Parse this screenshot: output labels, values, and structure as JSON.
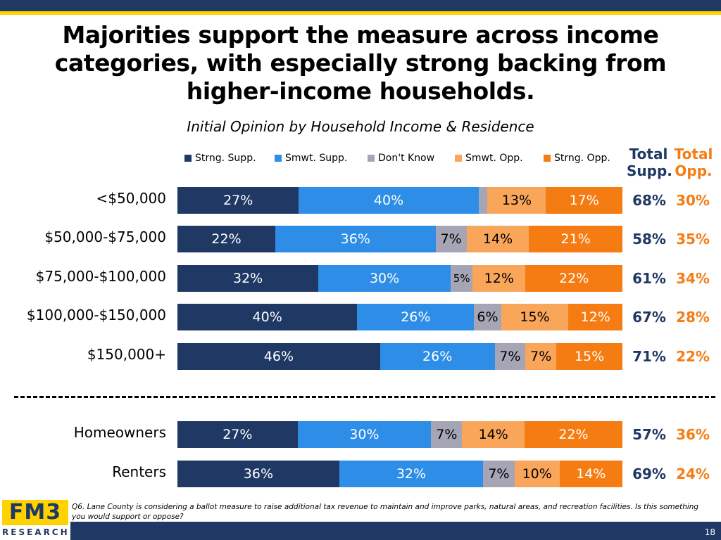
{
  "title": "Majorities support the measure across income categories, with especially strong backing from higher-income households.",
  "subtitle": "Initial Opinion by Household Income & Residence",
  "totals_header": {
    "support": "Total Supp.",
    "oppose": "Total Opp."
  },
  "colors": {
    "strong_support": "#1f3864",
    "somewhat_support": "#2e8de6",
    "dont_know": "#a5a5b5",
    "somewhat_oppose": "#f9a55a",
    "strong_oppose": "#f57c12",
    "total_support": "#1f3864",
    "total_oppose": "#f57c12"
  },
  "chart_data": {
    "type": "bar",
    "orientation": "horizontal",
    "stacked": true,
    "normalized": true,
    "title": "Initial Opinion by Household Income & Residence",
    "legend_position": "top",
    "series_names": [
      "Strng. Supp.",
      "Smwt. Supp.",
      "Don't Know",
      "Smwt. Opp.",
      "Strng. Opp."
    ],
    "rows": [
      {
        "category": "<$50,000",
        "values": [
          27,
          40,
          2,
          13,
          17
        ],
        "labels": [
          "27%",
          "40%",
          "",
          "13%",
          "17%"
        ],
        "total_support": "68%",
        "total_oppose": "30%"
      },
      {
        "category": "$50,000-$75,000",
        "values": [
          22,
          36,
          7,
          14,
          21
        ],
        "labels": [
          "22%",
          "36%",
          "7%",
          "14%",
          "21%"
        ],
        "total_support": "58%",
        "total_oppose": "35%"
      },
      {
        "category": "$75,000-$100,000",
        "values": [
          32,
          30,
          5,
          12,
          22
        ],
        "labels": [
          "32%",
          "30%",
          "5%",
          "12%",
          "22%"
        ],
        "total_support": "61%",
        "total_oppose": "34%"
      },
      {
        "category": "$100,000-$150,000",
        "values": [
          40,
          26,
          6,
          15,
          12
        ],
        "labels": [
          "40%",
          "26%",
          "6%",
          "15%",
          "12%"
        ],
        "total_support": "67%",
        "total_oppose": "28%"
      },
      {
        "category": "$150,000+",
        "values": [
          46,
          26,
          7,
          7,
          15
        ],
        "labels": [
          "46%",
          "26%",
          "7%",
          "7%",
          "15%"
        ],
        "total_support": "71%",
        "total_oppose": "22%"
      },
      {
        "category": "Homeowners",
        "values": [
          27,
          30,
          7,
          14,
          22
        ],
        "labels": [
          "27%",
          "30%",
          "7%",
          "14%",
          "22%"
        ],
        "total_support": "57%",
        "total_oppose": "36%"
      },
      {
        "category": "Renters",
        "values": [
          36,
          32,
          7,
          10,
          14
        ],
        "labels": [
          "36%",
          "32%",
          "7%",
          "10%",
          "14%"
        ],
        "total_support": "69%",
        "total_oppose": "24%"
      }
    ]
  },
  "footnote": "Q6. Lane County is considering a ballot measure to raise additional tax revenue to maintain and improve parks, natural areas, and recreation facilities. Is this something you would support or oppose?",
  "logo": {
    "top": "FM3",
    "bottom": "RESEARCH"
  },
  "page_number": "18"
}
